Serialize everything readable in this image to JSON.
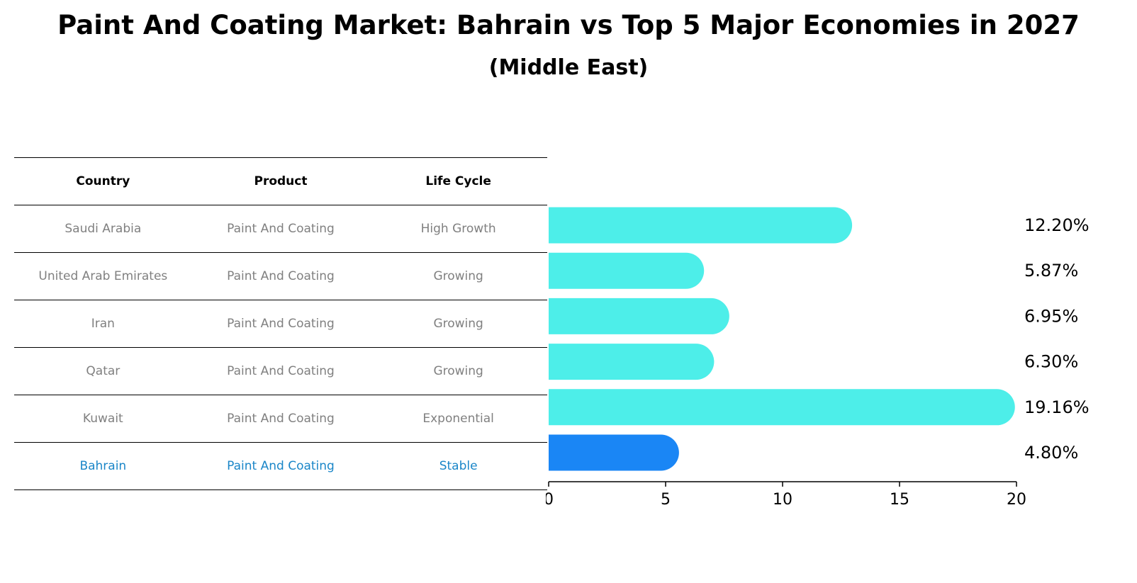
{
  "title": "Paint And Coating Market: Bahrain vs Top 5 Major Economies in 2027",
  "subtitle": "(Middle East)",
  "table": {
    "headers": [
      "Country",
      "Product",
      "Life Cycle"
    ],
    "rows": [
      {
        "country": "Saudi Arabia",
        "product": "Paint And Coating",
        "lifecycle": "High Growth"
      },
      {
        "country": "United Arab Emirates",
        "product": "Paint And Coating",
        "lifecycle": "Growing"
      },
      {
        "country": "Iran",
        "product": "Paint And Coating",
        "lifecycle": "Growing"
      },
      {
        "country": "Qatar",
        "product": "Paint And Coating",
        "lifecycle": "Growing"
      },
      {
        "country": "Kuwait",
        "product": "Paint And Coating",
        "lifecycle": "Exponential"
      },
      {
        "country": "Bahrain",
        "product": "Paint And Coating",
        "lifecycle": "Stable"
      }
    ]
  },
  "colors": {
    "bar": "#4deee9",
    "highlight_bar": "#1a86f5",
    "highlight_text": "#1a86c8",
    "muted_text": "#808080"
  },
  "chart_data": {
    "type": "bar",
    "orientation": "horizontal",
    "categories": [
      "Saudi Arabia",
      "United Arab Emirates",
      "Iran",
      "Qatar",
      "Kuwait",
      "Bahrain"
    ],
    "values": [
      12.2,
      5.87,
      6.95,
      6.3,
      19.16,
      4.8
    ],
    "value_labels": [
      "12.20%",
      "5.87%",
      "6.95%",
      "6.30%",
      "19.16%",
      "4.80%"
    ],
    "highlight": "Bahrain",
    "xlim": [
      0,
      20
    ],
    "xticks": [
      "0",
      "5",
      "10",
      "15",
      "20"
    ],
    "grid": false
  }
}
